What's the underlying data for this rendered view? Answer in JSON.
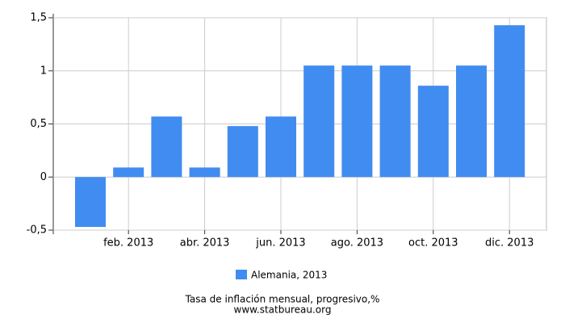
{
  "chart_data": {
    "type": "bar",
    "title": "Tasa de inflación mensual, progresivo,%",
    "subtitle": "www.statbureau.org",
    "categories": [
      null,
      "feb. 2013",
      null,
      "abr. 2013",
      null,
      "jun. 2013",
      null,
      "ago. 2013",
      null,
      "oct. 2013",
      null,
      "dic. 2013"
    ],
    "series": [
      {
        "name": "Alemania, 2013",
        "color": "#418cf0",
        "values": [
          -0.47,
          0.09,
          0.57,
          0.09,
          0.48,
          0.57,
          1.05,
          1.05,
          1.05,
          0.86,
          1.05,
          1.43
        ]
      }
    ],
    "ylim": [
      -0.5,
      1.5
    ],
    "yticks": [
      {
        "value": -0.5,
        "label": "-0,5"
      },
      0,
      {
        "value": 0.5,
        "label": "0,5"
      },
      1,
      {
        "value": 1.5,
        "label": "1,5"
      }
    ],
    "grid": true
  }
}
